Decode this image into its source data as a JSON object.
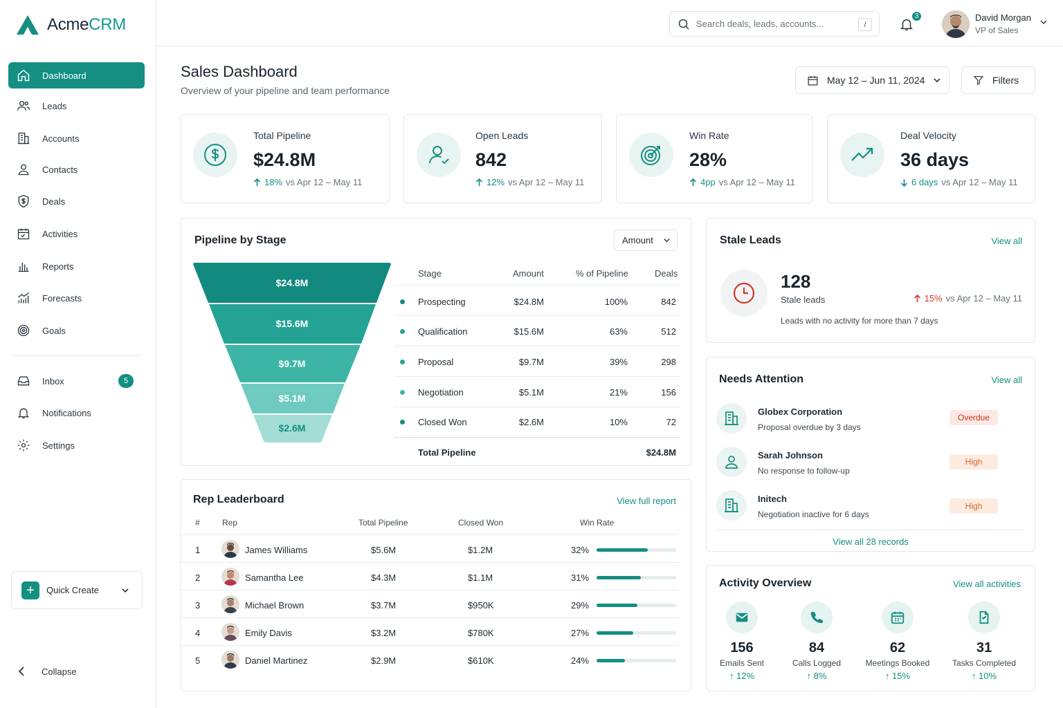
{
  "app": {
    "name_main": "Acme",
    "name_accent": "CRM"
  },
  "colors": {
    "accent": "#148f82",
    "accent_light": "#e8f4f2",
    "danger": "#d23a2a",
    "funnel": [
      "#138a80",
      "#24a394",
      "#3db5a6",
      "#6fcbbf",
      "#a3ddd5"
    ]
  },
  "sidebar": {
    "items": [
      {
        "label": "Dashboard",
        "icon": "home-icon"
      },
      {
        "label": "Leads",
        "icon": "users-icon"
      },
      {
        "label": "Accounts",
        "icon": "building-icon"
      },
      {
        "label": "Contacts",
        "icon": "user-icon"
      },
      {
        "label": "Deals",
        "icon": "deal-icon"
      },
      {
        "label": "Activities",
        "icon": "calendar-icon"
      },
      {
        "label": "Reports",
        "icon": "bar-chart-icon"
      },
      {
        "label": "Forecasts",
        "icon": "forecast-icon"
      },
      {
        "label": "Goals",
        "icon": "target-icon"
      }
    ],
    "secondary": [
      {
        "label": "Inbox",
        "badge": "5",
        "icon": "inbox-icon"
      },
      {
        "label": "Notifications",
        "icon": "bell-icon"
      },
      {
        "label": "Settings",
        "icon": "gear-icon"
      }
    ],
    "quick_create": "Quick Create",
    "collapse": "Collapse"
  },
  "topbar": {
    "search_placeholder": "Search deals, leads, accounts...",
    "search_shortcut": "/",
    "notif_count": "3",
    "user_name": "David Morgan",
    "user_role": "VP of Sales"
  },
  "header": {
    "title": "Sales Dashboard",
    "subtitle": "Overview of your pipeline and team performance",
    "date_range": "May 12 – Jun 11, 2024",
    "filters": "Filters"
  },
  "kpis": [
    {
      "label": "Total Pipeline",
      "value": "$24.8M",
      "delta": "18%",
      "direction": "up",
      "compare": "vs Apr 12 – May 11",
      "icon": "dollar-icon"
    },
    {
      "label": "Open Leads",
      "value": "842",
      "delta": "12%",
      "direction": "up",
      "compare": "vs Apr 12 – May 11",
      "icon": "user-icon"
    },
    {
      "label": "Win Rate",
      "value": "28%",
      "delta": "4pp",
      "direction": "up",
      "compare": "vs Apr 12 – May 11",
      "icon": "target-icon"
    },
    {
      "label": "Deal Velocity",
      "value": "36 days",
      "delta": "6 days",
      "direction": "down",
      "compare": "vs Apr 12 – May 11",
      "icon": "trend-icon"
    }
  ],
  "pipeline": {
    "title": "Pipeline by Stage",
    "select": "Amount",
    "headers": [
      "Stage",
      "Amount",
      "% of Pipeline",
      "Deals"
    ],
    "rows": [
      {
        "stage": "Prospecting",
        "amount": "$24.8M",
        "pct": "100%",
        "deals": "842"
      },
      {
        "stage": "Qualification",
        "amount": "$15.6M",
        "pct": "63%",
        "deals": "512"
      },
      {
        "stage": "Proposal",
        "amount": "$9.7M",
        "pct": "39%",
        "deals": "298"
      },
      {
        "stage": "Negotiation",
        "amount": "$5.1M",
        "pct": "21%",
        "deals": "156"
      },
      {
        "stage": "Closed Won",
        "amount": "$2.6M",
        "pct": "10%",
        "deals": "72"
      }
    ],
    "total_label": "Total Pipeline",
    "total_value": "$24.8M"
  },
  "leaderboard": {
    "title": "Rep Leaderboard",
    "link": "View full report",
    "headers": [
      "#",
      "Rep",
      "Total Pipeline",
      "Closed Won",
      "Win Rate"
    ],
    "rows": [
      {
        "rank": "1",
        "name": "James Williams",
        "pipeline": "$5.6M",
        "won": "$1.2M",
        "rate": "32%",
        "rate_value": 0.64
      },
      {
        "rank": "2",
        "name": "Samantha Lee",
        "pipeline": "$4.3M",
        "won": "$1.1M",
        "rate": "31%",
        "rate_value": 0.56
      },
      {
        "rank": "3",
        "name": "Michael Brown",
        "pipeline": "$3.7M",
        "won": "$950K",
        "rate": "29%",
        "rate_value": 0.51
      },
      {
        "rank": "4",
        "name": "Emily Davis",
        "pipeline": "$3.2M",
        "won": "$780K",
        "rate": "27%",
        "rate_value": 0.46
      },
      {
        "rank": "5",
        "name": "Daniel Martinez",
        "pipeline": "$2.9M",
        "won": "$610K",
        "rate": "24%",
        "rate_value": 0.36
      }
    ]
  },
  "stale": {
    "title": "Stale Leads",
    "link": "View all",
    "value": "128",
    "label": "Stale leads",
    "delta": "15%",
    "compare": "vs Apr 12 – May 11",
    "note": "Leads with no activity for more than 7 days"
  },
  "attention": {
    "title": "Needs Attention",
    "link": "View all",
    "items": [
      {
        "name": "Globex Corporation",
        "desc": "Proposal overdue by 3 days",
        "tag": "Overdue",
        "icon": "building-icon"
      },
      {
        "name": "Sarah Johnson",
        "desc": "No response to follow-up",
        "tag": "High",
        "icon": "user-icon"
      },
      {
        "name": "Initech",
        "desc": "Negotiation inactive for 6 days",
        "tag": "High",
        "icon": "building-icon"
      }
    ],
    "footer": "View all 28 records"
  },
  "activity": {
    "title": "Activity Overview",
    "link": "View all activities",
    "items": [
      {
        "value": "156",
        "label": "Emails Sent",
        "delta": "12%",
        "icon": "mail-icon"
      },
      {
        "value": "84",
        "label": "Calls Logged",
        "delta": "8%",
        "icon": "phone-icon"
      },
      {
        "value": "62",
        "label": "Meetings Booked",
        "delta": "15%",
        "icon": "calendar-icon"
      },
      {
        "value": "31",
        "label": "Tasks Completed",
        "delta": "10%",
        "icon": "task-icon"
      }
    ]
  }
}
